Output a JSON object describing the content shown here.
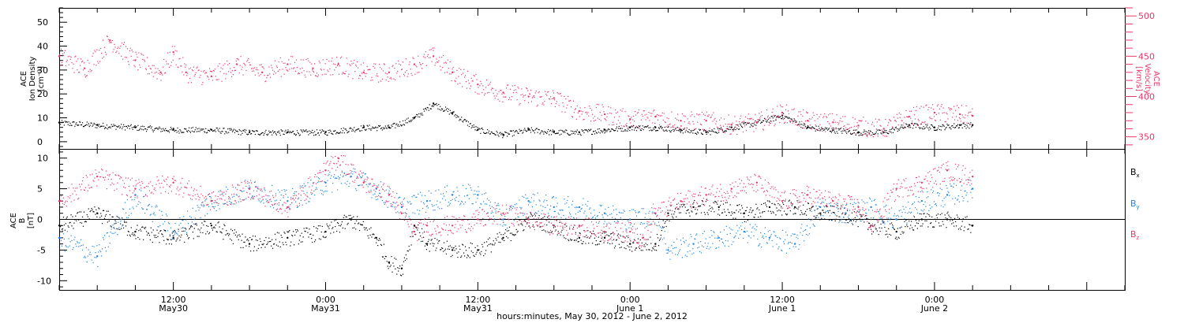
{
  "chart_data": [
    {
      "type": "scatter",
      "panel": "top",
      "left_axis": {
        "label_lines": [
          "ACE",
          "Ion Density",
          "[cm⁻³]"
        ],
        "ylim": [
          -3,
          56
        ],
        "ticks": [
          0,
          10,
          20,
          30,
          40,
          50
        ]
      },
      "right_axis": {
        "label_lines": [
          "ACE",
          "Velocity",
          "[km/s]"
        ],
        "ylim": [
          335,
          510
        ],
        "ticks": [
          350,
          400,
          450,
          500
        ]
      },
      "x_unit": "hours since May 30, 2012 00:00",
      "xlim": [
        3,
        87
      ],
      "series": [
        {
          "color": "#000000",
          "axis": "left",
          "points": [
            [
              3,
              8
            ],
            [
              6,
              7
            ],
            [
              9,
              6
            ],
            [
              12,
              5
            ],
            [
              15,
              5
            ],
            [
              18,
              4
            ],
            [
              21,
              4
            ],
            [
              24,
              4
            ],
            [
              27,
              6
            ],
            [
              29,
              6
            ],
            [
              31,
              10
            ],
            [
              32.5,
              16
            ],
            [
              34,
              12
            ],
            [
              36,
              5
            ],
            [
              38,
              3
            ],
            [
              40,
              5
            ],
            [
              42,
              4
            ],
            [
              44,
              4
            ],
            [
              46,
              5
            ],
            [
              48,
              6
            ],
            [
              50,
              6
            ],
            [
              52,
              5
            ],
            [
              54,
              4
            ],
            [
              56,
              6
            ],
            [
              58,
              8
            ],
            [
              60,
              11
            ],
            [
              62,
              6
            ],
            [
              64,
              5
            ],
            [
              66,
              4
            ],
            [
              68,
              4
            ],
            [
              70,
              7
            ],
            [
              72,
              6
            ],
            [
              74,
              7
            ],
            [
              75,
              7
            ]
          ]
        },
        {
          "color": "#e8386a",
          "axis": "right",
          "points": [
            [
              3,
              450
            ],
            [
              5,
              435
            ],
            [
              7,
              470
            ],
            [
              9,
              445
            ],
            [
              11,
              430
            ],
            [
              12,
              455
            ],
            [
              13,
              430
            ],
            [
              15,
              425
            ],
            [
              17,
              440
            ],
            [
              19,
              430
            ],
            [
              21,
              440
            ],
            [
              23,
              435
            ],
            [
              25,
              440
            ],
            [
              27,
              430
            ],
            [
              29,
              430
            ],
            [
              31,
              440
            ],
            [
              32.5,
              450
            ],
            [
              34,
              430
            ],
            [
              36,
              415
            ],
            [
              38,
              405
            ],
            [
              40,
              400
            ],
            [
              42,
              398
            ],
            [
              44,
              382
            ],
            [
              46,
              378
            ],
            [
              48,
              372
            ],
            [
              50,
              375
            ],
            [
              52,
              370
            ],
            [
              54,
              370
            ],
            [
              56,
              365
            ],
            [
              58,
              368
            ],
            [
              60,
              380
            ],
            [
              62,
              370
            ],
            [
              64,
              368
            ],
            [
              66,
              364
            ],
            [
              68,
              360
            ],
            [
              70,
              375
            ],
            [
              72,
              380
            ],
            [
              74,
              378
            ],
            [
              75,
              376
            ]
          ]
        }
      ]
    },
    {
      "type": "scatter",
      "panel": "bottom",
      "axis": {
        "label_lines": [
          "ACE",
          "B",
          "[nT]"
        ],
        "ylim": [
          -11.5,
          11.5
        ],
        "ticks": [
          -10,
          -5,
          0,
          5,
          10
        ]
      },
      "x_unit": "hours since May 30, 2012 00:00",
      "xlim": [
        3,
        87
      ],
      "legend_position": "right",
      "series": [
        {
          "name": "Bₓ",
          "label_main": "B",
          "label_sub": "x",
          "color": "#000000",
          "points": [
            [
              3,
              -1
            ],
            [
              6,
              1
            ],
            [
              9,
              -2
            ],
            [
              12,
              -3
            ],
            [
              15,
              -1
            ],
            [
              18,
              -4
            ],
            [
              21,
              -3
            ],
            [
              24,
              -2
            ],
            [
              26,
              0
            ],
            [
              28,
              -3
            ],
            [
              29,
              -7
            ],
            [
              30,
              -8
            ],
            [
              31,
              -1
            ],
            [
              32,
              -4
            ],
            [
              34,
              -5
            ],
            [
              36,
              -5
            ],
            [
              38,
              -3
            ],
            [
              40,
              0
            ],
            [
              42,
              -1
            ],
            [
              44,
              -3
            ],
            [
              46,
              -3
            ],
            [
              48,
              -4
            ],
            [
              50,
              -4
            ],
            [
              51,
              1
            ],
            [
              53,
              2
            ],
            [
              55,
              2
            ],
            [
              57,
              1
            ],
            [
              59,
              2
            ],
            [
              61,
              2
            ],
            [
              63,
              1
            ],
            [
              65,
              1
            ],
            [
              67,
              -1
            ],
            [
              69,
              -2
            ],
            [
              71,
              0
            ],
            [
              73,
              0
            ],
            [
              75,
              -1
            ]
          ]
        },
        {
          "name": "Bᵧ",
          "label_main": "B",
          "label_sub": "y",
          "color": "#1f85e0",
          "points": [
            [
              3,
              -3
            ],
            [
              6,
              -6
            ],
            [
              9,
              4
            ],
            [
              12,
              -2
            ],
            [
              15,
              3
            ],
            [
              18,
              5
            ],
            [
              21,
              3
            ],
            [
              24,
              6
            ],
            [
              26,
              7
            ],
            [
              28,
              5
            ],
            [
              30,
              2
            ],
            [
              32,
              3
            ],
            [
              34,
              4
            ],
            [
              36,
              4
            ],
            [
              38,
              0
            ],
            [
              40,
              3
            ],
            [
              42,
              2
            ],
            [
              44,
              2
            ],
            [
              46,
              1
            ],
            [
              48,
              0
            ],
            [
              50,
              1
            ],
            [
              51,
              -5
            ],
            [
              53,
              -4
            ],
            [
              55,
              -3
            ],
            [
              57,
              -2
            ],
            [
              59,
              -3
            ],
            [
              61,
              -4
            ],
            [
              63,
              2
            ],
            [
              65,
              1
            ],
            [
              67,
              2
            ],
            [
              69,
              0
            ],
            [
              71,
              3
            ],
            [
              73,
              4
            ],
            [
              75,
              5
            ]
          ]
        },
        {
          "name": "Bᶻ",
          "label_main": "B",
          "label_sub": "z",
          "color": "#e8386a",
          "points": [
            [
              3,
              3
            ],
            [
              6,
              7
            ],
            [
              9,
              5
            ],
            [
              12,
              6
            ],
            [
              15,
              3
            ],
            [
              18,
              5
            ],
            [
              21,
              2
            ],
            [
              24,
              8
            ],
            [
              25,
              10
            ],
            [
              27,
              6
            ],
            [
              29,
              4
            ],
            [
              30,
              1
            ],
            [
              31,
              -2
            ],
            [
              32,
              -1
            ],
            [
              34,
              -1
            ],
            [
              36,
              0
            ],
            [
              38,
              1
            ],
            [
              40,
              0
            ],
            [
              42,
              -1
            ],
            [
              44,
              -1
            ],
            [
              46,
              -2
            ],
            [
              48,
              -2
            ],
            [
              49,
              -3
            ],
            [
              50,
              1
            ],
            [
              52,
              3
            ],
            [
              54,
              4
            ],
            [
              56,
              5
            ],
            [
              58,
              6
            ],
            [
              60,
              3
            ],
            [
              62,
              4
            ],
            [
              64,
              3
            ],
            [
              66,
              2
            ],
            [
              67,
              -1
            ],
            [
              69,
              5
            ],
            [
              71,
              6
            ],
            [
              73,
              8
            ],
            [
              75,
              7
            ]
          ]
        }
      ]
    }
  ],
  "x_axis": {
    "labels": [
      {
        "hour": 12,
        "line1": "12:00",
        "line2": "May30"
      },
      {
        "hour": 24,
        "line1": "0:00",
        "line2": "May31"
      },
      {
        "hour": 36,
        "line1": "12:00",
        "line2": "May31"
      },
      {
        "hour": 48,
        "line1": "0:00",
        "line2": "June 1"
      },
      {
        "hour": 60,
        "line1": "12:00",
        "line2": "June 1"
      },
      {
        "hour": 72,
        "line1": "0:00",
        "line2": "June 2"
      }
    ],
    "title": "hours:minutes, May 30, 2012 - June  2, 2012"
  },
  "colors": {
    "density": "#000000",
    "velocity": "#e8386a",
    "bx": "#000000",
    "by": "#1f85e0",
    "bz": "#e8386a"
  }
}
